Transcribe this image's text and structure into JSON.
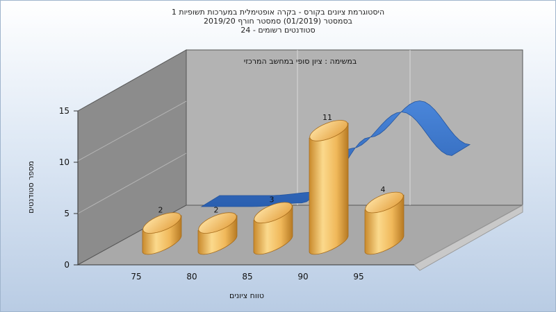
{
  "chart_data": {
    "type": "bar",
    "title_lines": [
      "היסטוגרמת ציונים בקורס - בקרה אופטימלית במערכות תשופיות 1",
      "בסמסטר  (01/2019)  סמסטר חורף  2019/20",
      "סטודנטים רשומים - 24"
    ],
    "annotation": "במשימה : ציון סופי במחשב המרכזי",
    "xlabel": "טווח ציונים",
    "ylabel": "מספר סטודנטים",
    "categories": [
      "75",
      "80",
      "85",
      "90",
      "95"
    ],
    "values": [
      2,
      2,
      3,
      11,
      4
    ],
    "trend": [
      0,
      0,
      0.5,
      8,
      13,
      7
    ],
    "yticks": [
      0,
      5,
      10,
      15
    ],
    "ylim": [
      0,
      15
    ],
    "colors": {
      "bar_light": "#fbd98c",
      "bar_mid": "#e9a94a",
      "bar_dark": "#b77a23",
      "trend": "#2f6bc2",
      "back_wall": "#b3b3b3",
      "side_wall": "#8c8c8c",
      "floor": "#a9a9a9"
    }
  }
}
